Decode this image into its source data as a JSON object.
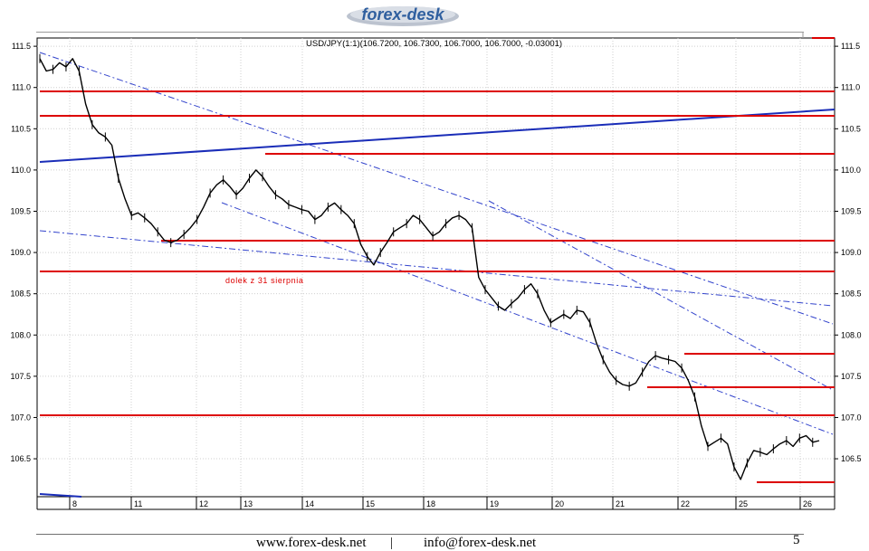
{
  "logo": {
    "text": "forex-desk"
  },
  "chart_data": {
    "type": "line",
    "title": "USD/JPY(1:1)(106.7200, 106.7300, 106.7000, 106.7000, -0.03001)",
    "xlabel": "",
    "ylabel": "",
    "ylim": [
      106.04,
      111.6
    ],
    "y_ticks": [
      "111.5",
      "111.0",
      "110.5",
      "110.0",
      "109.5",
      "109.0",
      "108.5",
      "108.0",
      "107.5",
      "107.0",
      "106.5"
    ],
    "x_ticks": [
      "8",
      "11",
      "12",
      "13",
      "14",
      "15",
      "18",
      "19",
      "20",
      "21",
      "22",
      "25",
      "26"
    ],
    "grid": true,
    "series": [
      {
        "values": [
          111.35,
          111.2,
          111.22,
          111.3,
          111.25,
          111.35,
          111.2,
          110.8,
          110.55,
          110.45,
          110.4,
          110.3,
          109.9,
          109.65,
          109.45,
          109.48,
          109.42,
          109.35,
          109.25,
          109.15,
          109.12,
          109.15,
          109.22,
          109.3,
          109.4,
          109.55,
          109.72,
          109.82,
          109.88,
          109.8,
          109.7,
          109.78,
          109.9,
          110.0,
          109.92,
          109.8,
          109.7,
          109.65,
          109.58,
          109.55,
          109.52,
          109.5,
          109.4,
          109.45,
          109.55,
          109.6,
          109.52,
          109.45,
          109.35,
          109.1,
          108.95,
          108.85,
          109.0,
          109.12,
          109.25,
          109.3,
          109.35,
          109.45,
          109.4,
          109.3,
          109.2,
          109.25,
          109.35,
          109.42,
          109.45,
          109.4,
          109.3,
          108.7,
          108.55,
          108.45,
          108.35,
          108.3,
          108.38,
          108.45,
          108.55,
          108.62,
          108.5,
          108.3,
          108.15,
          108.2,
          108.25,
          108.2,
          108.3,
          108.28,
          108.15,
          107.9,
          107.7,
          107.55,
          107.45,
          107.4,
          107.38,
          107.42,
          107.55,
          107.68,
          107.75,
          107.72,
          107.7,
          107.68,
          107.6,
          107.45,
          107.25,
          106.9,
          106.65,
          106.7,
          106.75,
          106.68,
          106.4,
          106.25,
          106.45,
          106.6,
          106.58,
          106.55,
          106.62,
          106.68,
          106.72,
          106.65,
          106.75,
          106.78,
          106.7,
          106.72
        ]
      }
    ],
    "annotations": [
      {
        "label": "dolek z 31 sierpnia"
      }
    ]
  },
  "footer": {
    "website": "www.forex-desk.net",
    "separator": "|",
    "email": "info@forex-desk.net",
    "page_number": "5"
  }
}
